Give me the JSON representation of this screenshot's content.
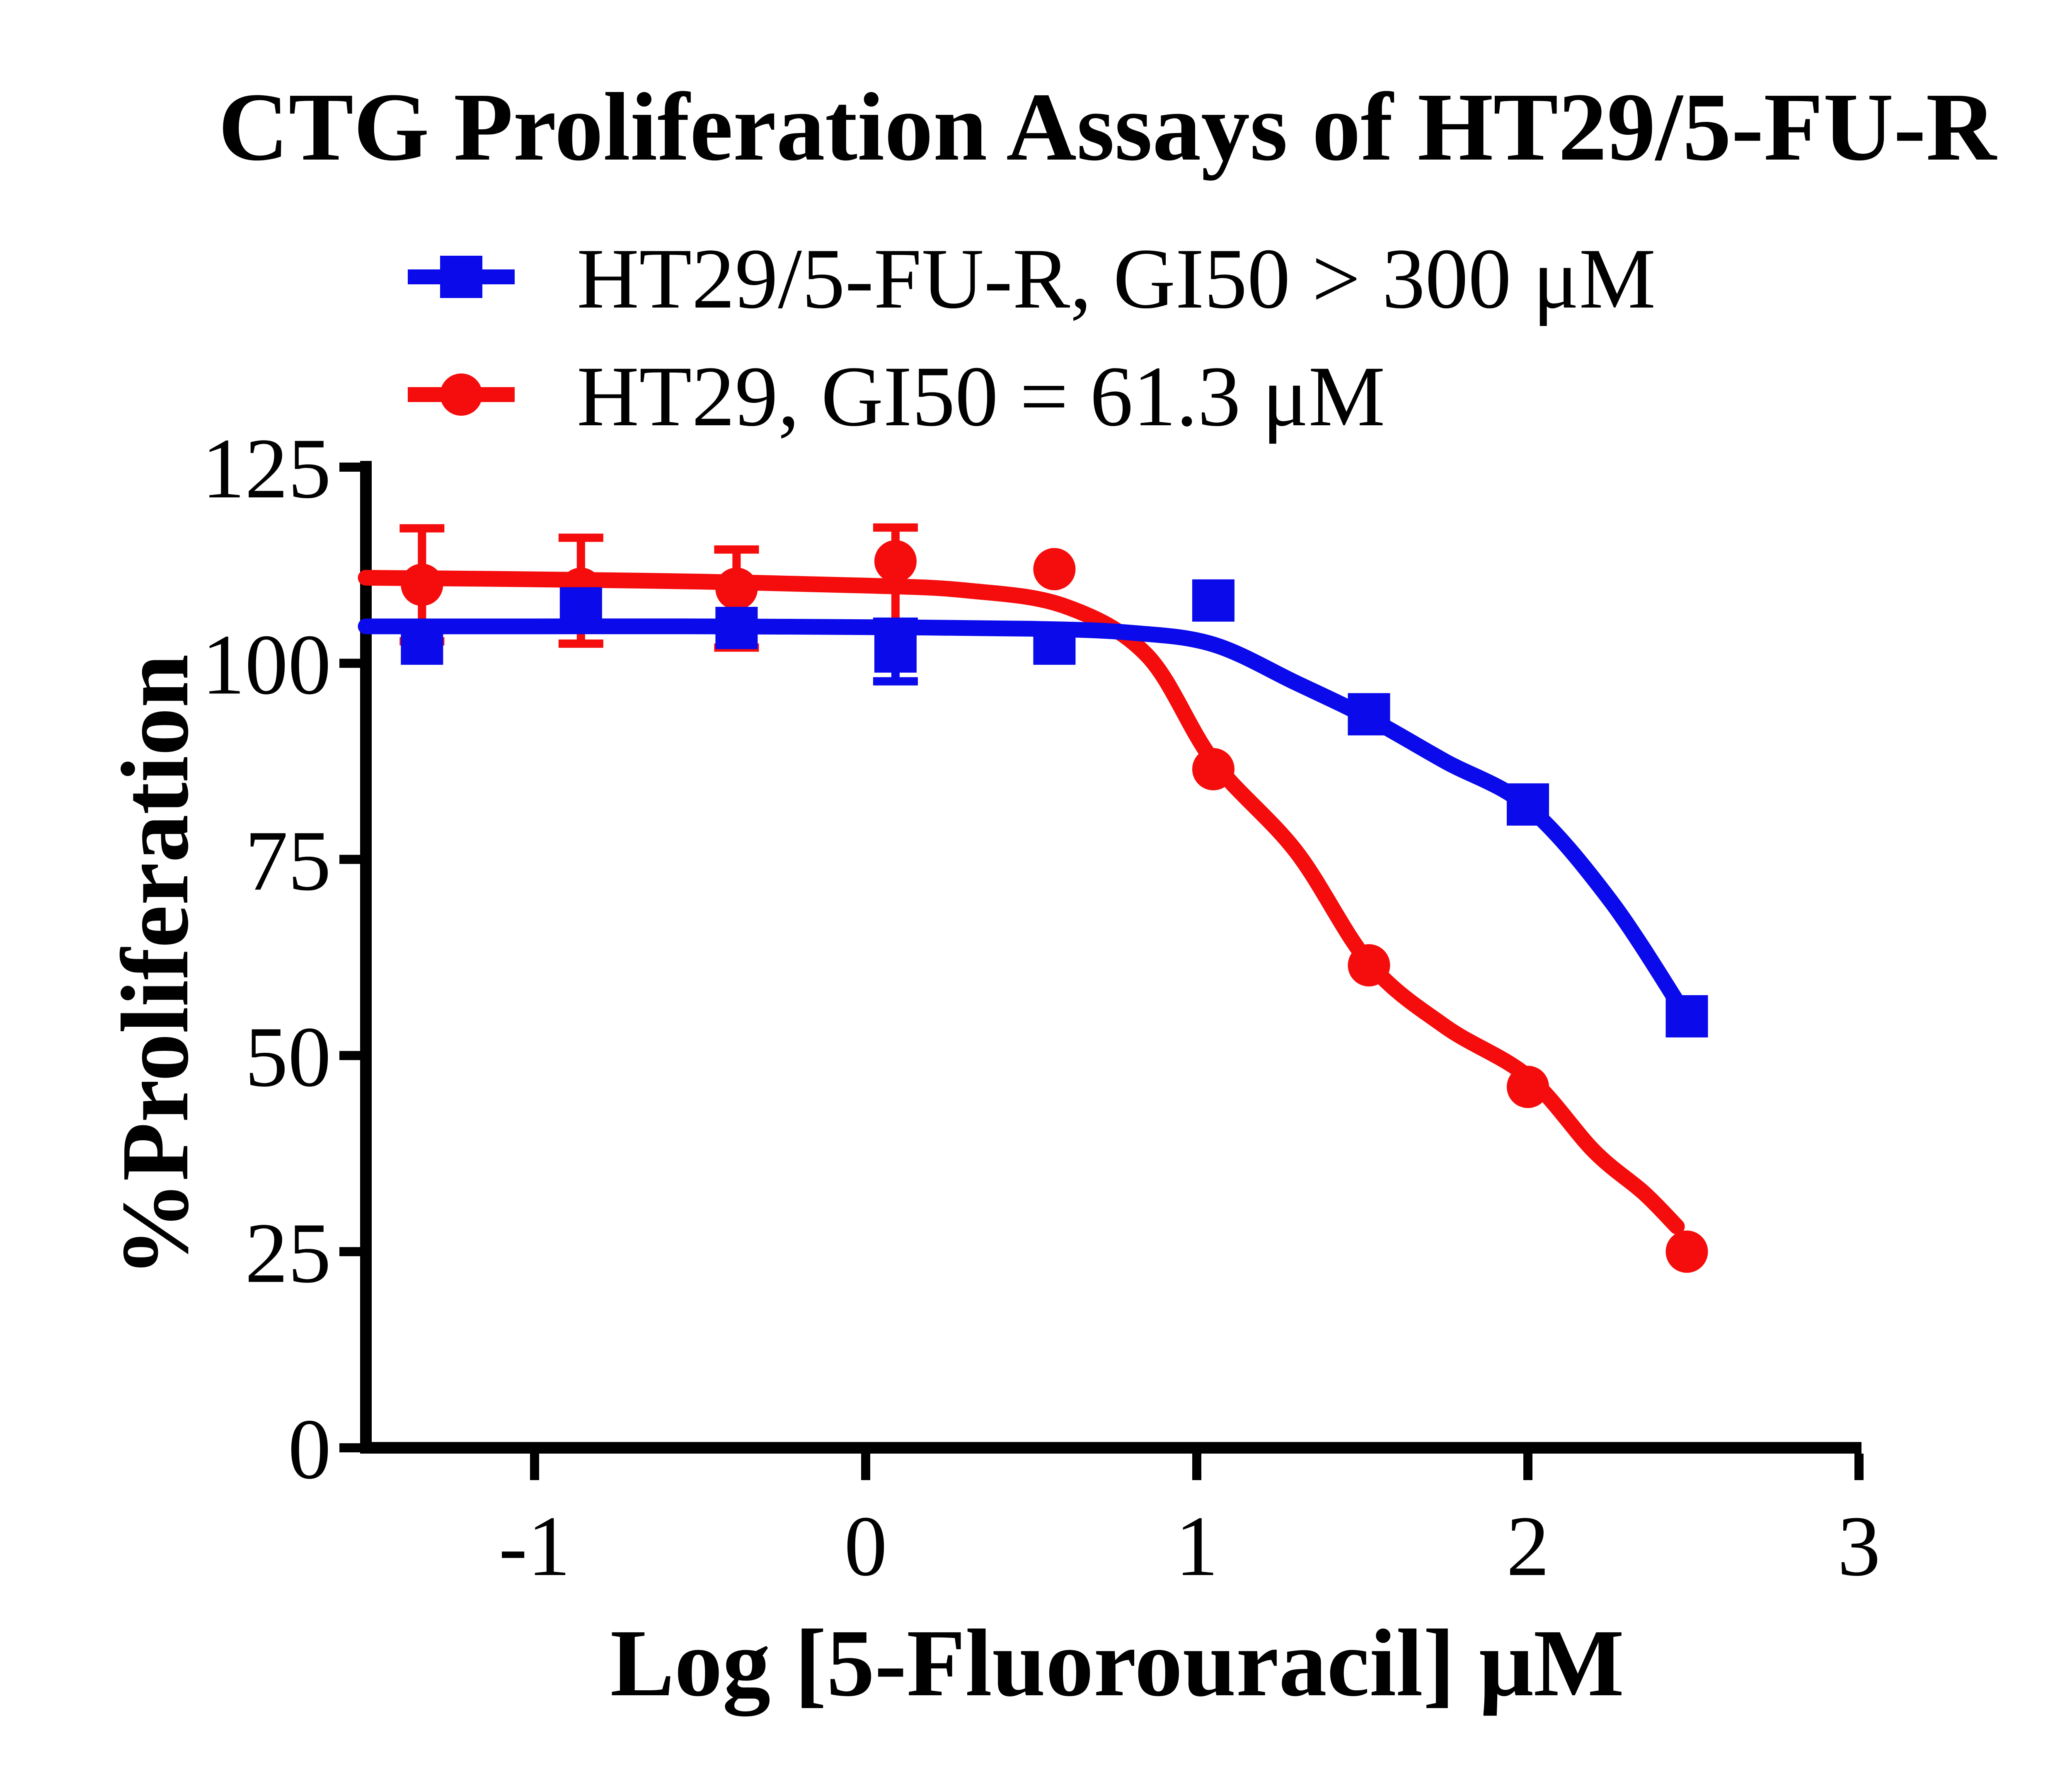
{
  "title": "CTG Proliferation Assays of HT29/5-FU-R",
  "colors": {
    "resistant_blue": "#0a0aeb",
    "parental_red": "#f50c0c",
    "axis_black": "#000000",
    "background": "#ffffff"
  },
  "chart_data": {
    "type": "scatter",
    "title": "CTG Proliferation Assays of HT29/5-FU-R",
    "xlabel": "Log [5-Fluorouracil] μM",
    "ylabel": "%Proliferation",
    "xlim": [
      -1.51,
      3.02
    ],
    "ylim": [
      0,
      125
    ],
    "x_ticks": [
      -1,
      0,
      1,
      2,
      3
    ],
    "y_ticks": [
      125,
      100,
      75,
      50,
      25,
      0
    ],
    "grid": false,
    "legend_position": "top-left-above-plot",
    "x_log_concentration": [
      -1.34,
      -0.86,
      -0.39,
      0.09,
      0.57,
      1.05,
      1.52,
      2.0,
      2.48
    ],
    "series": [
      {
        "name": "HT29/5-FU-R, GI50 > 300 μM",
        "cell_line": "HT29/5-FU-R",
        "gi50_text": "GI50 > 300 μM",
        "color": "#0a0aeb",
        "marker": "square",
        "values": [
          102.5,
          107,
          104.5,
          101.5,
          102.5,
          108,
          93.5,
          82,
          55
        ],
        "err_up": [
          0,
          0,
          0,
          3.8,
          0,
          0,
          0,
          0,
          0
        ],
        "err_down": [
          0,
          0,
          0,
          3.8,
          0,
          0,
          0,
          0,
          0
        ],
        "fit_curve": [
          [
            -1.51,
            104.7
          ],
          [
            -1.0,
            104.7
          ],
          [
            -0.5,
            104.7
          ],
          [
            0.0,
            104.6
          ],
          [
            0.5,
            104.4
          ],
          [
            0.8,
            103.9
          ],
          [
            1.05,
            102.4
          ],
          [
            1.3,
            97.5
          ],
          [
            1.52,
            93.0
          ],
          [
            1.75,
            87.5
          ],
          [
            2.0,
            81.7
          ],
          [
            2.25,
            69.7
          ],
          [
            2.48,
            54.9
          ]
        ]
      },
      {
        "name": "HT29, GI50 = 61.3 μM",
        "cell_line": "HT29",
        "gi50_text": "GI50 = 61.3 μM",
        "color": "#f50c0c",
        "marker": "circle",
        "values": [
          110,
          109.5,
          109.5,
          113,
          112,
          86.5,
          61.5,
          46,
          25
        ],
        "err_up": [
          7.2,
          6.5,
          5.0,
          4.3,
          0,
          0,
          0,
          0,
          0
        ],
        "err_down": [
          7.2,
          7.0,
          7.5,
          8.5,
          0,
          0,
          0,
          0,
          0
        ],
        "fit_curve": [
          [
            -1.51,
            110.9
          ],
          [
            -1.0,
            110.7
          ],
          [
            -0.5,
            110.4
          ],
          [
            0.0,
            109.9
          ],
          [
            0.3,
            109.3
          ],
          [
            0.6,
            107.3
          ],
          [
            0.85,
            101.0
          ],
          [
            1.05,
            87.5
          ],
          [
            1.3,
            76.0
          ],
          [
            1.52,
            61.8
          ],
          [
            1.75,
            53.7
          ],
          [
            2.0,
            47.3
          ],
          [
            2.2,
            37.8
          ],
          [
            2.35,
            32.5
          ],
          [
            2.45,
            28.2
          ]
        ]
      }
    ]
  }
}
